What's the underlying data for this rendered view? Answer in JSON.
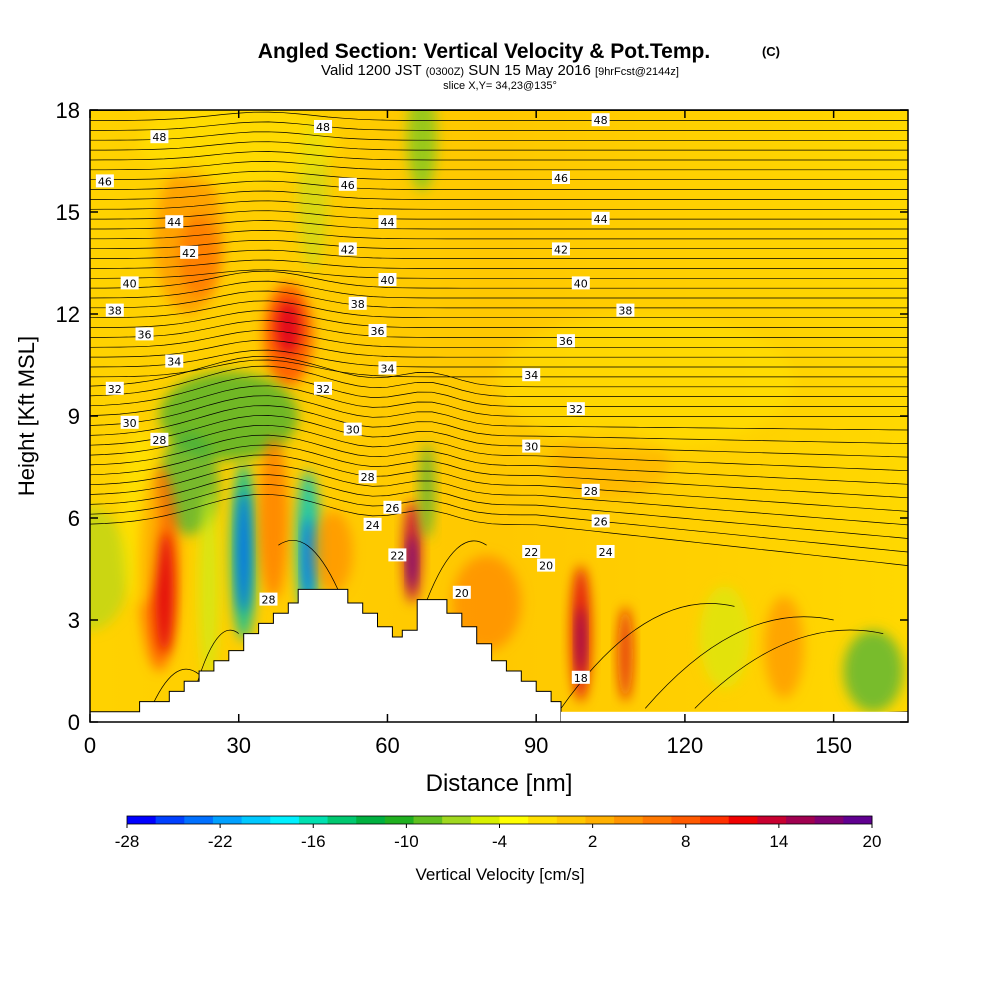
{
  "chart_data": {
    "type": "heatmap",
    "title": "Angled Section: Vertical Velocity & Pot.Temp.",
    "title_unit": "(C)",
    "subtitle": {
      "prefix": "Valid 1200 JST",
      "utc": "(0300Z)",
      "date": "SUN 15 May 2016",
      "forecast": "[9hrFcst@2144z]"
    },
    "slice_label": "slice X,Y= 34,23@135°",
    "xlabel": "Distance [nm]",
    "ylabel": "Height [Kft MSL]",
    "xlim": [
      0,
      165
    ],
    "ylim": [
      0,
      18
    ],
    "x_ticks": [
      "0",
      "30",
      "60",
      "90",
      "120",
      "150"
    ],
    "x_tick_values": [
      0,
      30,
      60,
      90,
      120,
      150
    ],
    "y_ticks": [
      "0",
      "3",
      "6",
      "9",
      "12",
      "15",
      "18"
    ],
    "y_tick_values": [
      0,
      3,
      6,
      9,
      12,
      15,
      18
    ],
    "colorbar": {
      "label": "Vertical Velocity [cm/s]",
      "min": -28,
      "max": 20,
      "tick_labels": [
        "-28",
        "-22",
        "-16",
        "-10",
        "-4",
        "2",
        "8",
        "14",
        "20"
      ],
      "tick_values": [
        -28,
        -22,
        -16,
        -10,
        -4,
        2,
        8,
        14,
        20
      ],
      "colors": [
        "#0000ff",
        "#0040ff",
        "#0070ff",
        "#00a0ff",
        "#00c8ff",
        "#00f0ff",
        "#00e0b0",
        "#00c870",
        "#00b040",
        "#20b020",
        "#60c020",
        "#a0d820",
        "#d8f000",
        "#ffff00",
        "#ffe000",
        "#ffc800",
        "#ffb000",
        "#ff9400",
        "#ff7800",
        "#ff5a00",
        "#ff3000",
        "#f00000",
        "#c80030",
        "#a00050",
        "#800070",
        "#600090"
      ]
    },
    "contour_labels": {
      "potential_temperature": [
        "48",
        "48",
        "48",
        "46",
        "46",
        "46",
        "44",
        "44",
        "44",
        "42",
        "42",
        "42",
        "40",
        "40",
        "40",
        "38",
        "38",
        "38",
        "36",
        "36",
        "36",
        "34",
        "34",
        "34",
        "32",
        "32",
        "32",
        "30",
        "30",
        "30",
        "28",
        "28",
        "28",
        "26",
        "26",
        "24",
        "24",
        "22",
        "22",
        "20",
        "20",
        "18",
        "28"
      ]
    },
    "terrain_nm": [
      [
        0,
        0.3
      ],
      [
        10,
        0.3
      ],
      [
        10,
        0.6
      ],
      [
        16,
        0.6
      ],
      [
        16,
        0.9
      ],
      [
        19,
        0.9
      ],
      [
        19,
        1.2
      ],
      [
        22,
        1.2
      ],
      [
        22,
        1.5
      ],
      [
        25,
        1.5
      ],
      [
        25,
        1.8
      ],
      [
        28,
        1.8
      ],
      [
        28,
        2.1
      ],
      [
        31,
        2.1
      ],
      [
        31,
        2.6
      ],
      [
        34,
        2.6
      ],
      [
        34,
        2.9
      ],
      [
        37,
        2.9
      ],
      [
        37,
        3.2
      ],
      [
        40,
        3.2
      ],
      [
        40,
        3.5
      ],
      [
        42,
        3.5
      ],
      [
        42,
        3.9
      ],
      [
        52,
        3.9
      ],
      [
        52,
        3.5
      ],
      [
        55,
        3.5
      ],
      [
        55,
        3.2
      ],
      [
        58,
        3.2
      ],
      [
        58,
        2.8
      ],
      [
        61,
        2.8
      ],
      [
        61,
        2.5
      ],
      [
        63,
        2.5
      ],
      [
        63,
        2.7
      ],
      [
        66,
        2.7
      ],
      [
        66,
        3.6
      ],
      [
        72,
        3.6
      ],
      [
        72,
        3.2
      ],
      [
        75,
        3.2
      ],
      [
        75,
        2.8
      ],
      [
        78,
        2.8
      ],
      [
        78,
        2.3
      ],
      [
        81,
        2.3
      ],
      [
        81,
        1.8
      ],
      [
        84,
        1.8
      ],
      [
        84,
        1.5
      ],
      [
        87,
        1.5
      ],
      [
        87,
        1.2
      ],
      [
        90,
        1.2
      ],
      [
        90,
        0.9
      ],
      [
        93,
        0.9
      ],
      [
        93,
        0.6
      ],
      [
        95,
        0.6
      ],
      [
        95,
        0
      ]
    ]
  }
}
